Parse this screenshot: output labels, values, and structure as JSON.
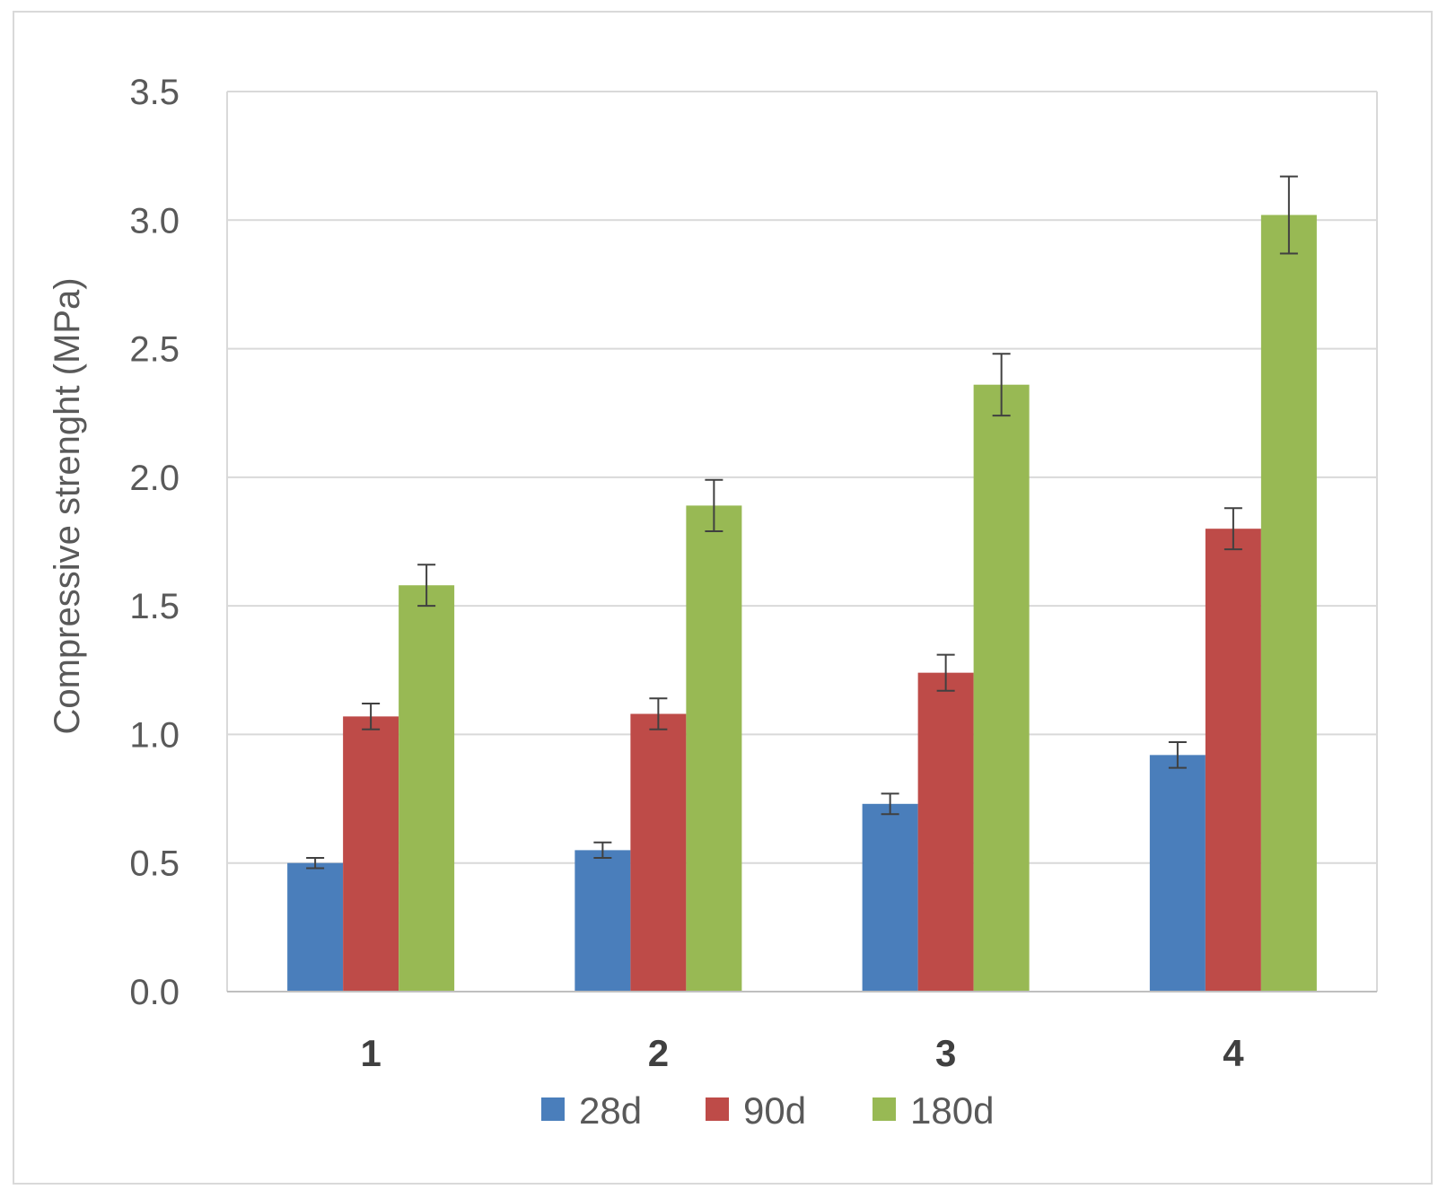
{
  "chart_data": {
    "type": "bar",
    "title": "",
    "xlabel": "",
    "ylabel": "Compressive strenght (MPa)",
    "categories": [
      "1",
      "2",
      "3",
      "4"
    ],
    "ylim": [
      0,
      3.5
    ],
    "yticks": [
      "0.0",
      "0.5",
      "1.0",
      "1.5",
      "2.0",
      "2.5",
      "3.0",
      "3.5"
    ],
    "grid": true,
    "legend_position": "bottom",
    "series": [
      {
        "name": "28d",
        "color": "#4a7ebb",
        "values": [
          0.5,
          0.55,
          0.73,
          0.92
        ],
        "errors": [
          0.02,
          0.03,
          0.04,
          0.05
        ]
      },
      {
        "name": "90d",
        "color": "#be4b48",
        "values": [
          1.07,
          1.08,
          1.24,
          1.8
        ],
        "errors": [
          0.05,
          0.06,
          0.07,
          0.08
        ]
      },
      {
        "name": "180d",
        "color": "#98b954",
        "values": [
          1.58,
          1.89,
          2.36,
          3.02
        ],
        "errors": [
          0.08,
          0.1,
          0.12,
          0.15
        ]
      }
    ]
  }
}
